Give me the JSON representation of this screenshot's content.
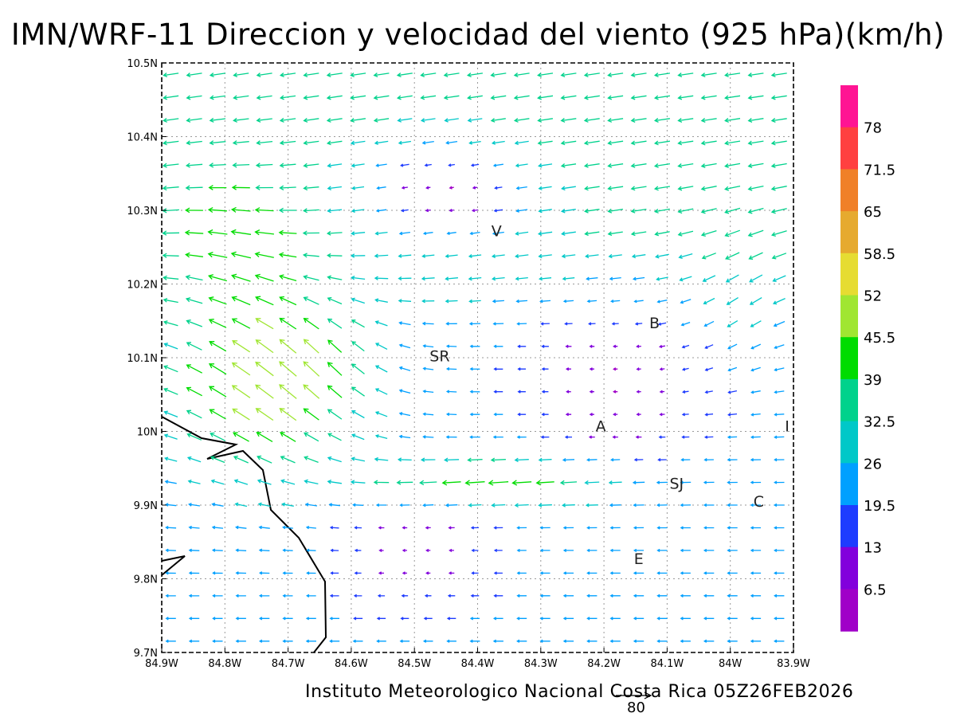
{
  "title": "IMN/WRF-11 Direccion y velocidad del viento (925 hPa)(km/h)",
  "footer": "Instituto Meteorologico Nacional Costa Rica 05Z26FEB2026",
  "reference_vector": {
    "label": "80"
  },
  "colorbar": {
    "labels": [
      "78",
      "71.5",
      "65",
      "58.5",
      "52",
      "45.5",
      "39",
      "32.5",
      "26",
      "19.5",
      "13",
      "6.5"
    ],
    "colors": [
      "#ff1493",
      "#ff4040",
      "#f08028",
      "#e6aa2f",
      "#e6dc32",
      "#a0e632",
      "#00dc00",
      "#00d28c",
      "#00c8c8",
      "#00a0ff",
      "#1e3cff",
      "#8200dc",
      "#a000c8"
    ]
  },
  "map": {
    "x_ticks": [
      "84.9W",
      "84.8W",
      "84.7W",
      "84.6W",
      "84.5W",
      "84.4W",
      "84.3W",
      "84.2W",
      "84.1W",
      "84W",
      "83.9W"
    ],
    "y_ticks": [
      "10.5N",
      "10.4N",
      "10.3N",
      "10.2N",
      "10.1N",
      "10N",
      "9.9N",
      "9.8N",
      "9.7N"
    ],
    "city_labels": [
      {
        "text": "V",
        "lon": -84.37,
        "lat": 10.265
      },
      {
        "text": "B",
        "lon": -84.12,
        "lat": 10.14
      },
      {
        "text": "SR",
        "lon": -84.46,
        "lat": 10.095
      },
      {
        "text": "A",
        "lon": -84.205,
        "lat": 10.0
      },
      {
        "text": "I",
        "lon": -83.91,
        "lat": 10.0
      },
      {
        "text": "SJ",
        "lon": -84.085,
        "lat": 9.922
      },
      {
        "text": "C",
        "lon": -83.955,
        "lat": 9.898
      },
      {
        "text": "E",
        "lon": -84.145,
        "lat": 9.82
      }
    ]
  }
}
